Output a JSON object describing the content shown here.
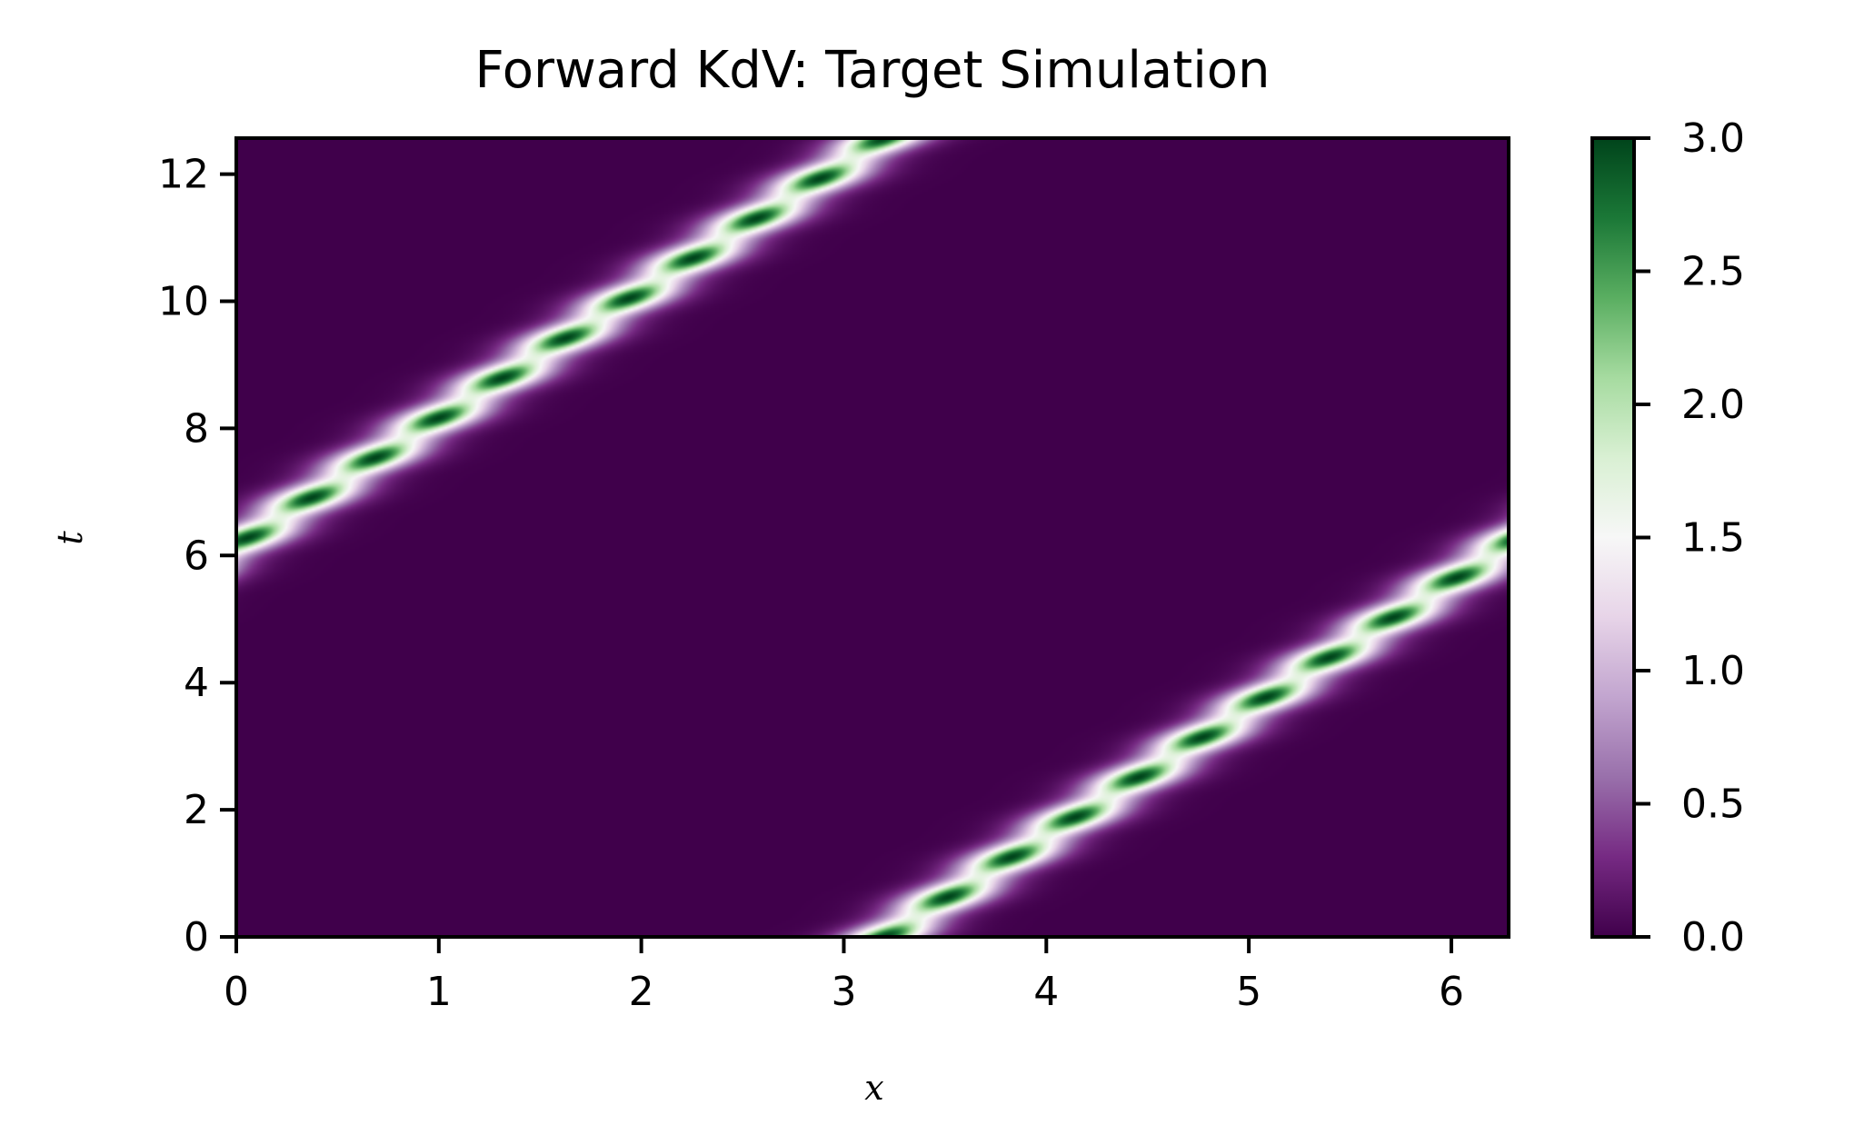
{
  "chart_data": {
    "type": "heatmap",
    "title": "Forward KdV: Target Simulation",
    "xlabel": "x",
    "ylabel": "t",
    "xlim": [
      0,
      6.283
    ],
    "ylim": [
      0,
      12.566
    ],
    "x_ticks": [
      0,
      1,
      2,
      3,
      4,
      5,
      6
    ],
    "y_ticks": [
      0,
      2,
      4,
      6,
      8,
      10,
      12
    ],
    "colorbar": {
      "vmin": 0.0,
      "vmax": 3.0,
      "ticks": [
        "0.0",
        "0.5",
        "1.0",
        "1.5",
        "2.0",
        "2.5",
        "3.0"
      ],
      "colormap": "PRGn",
      "colors": [
        "#40004b",
        "#762a83",
        "#9970ab",
        "#c2a5cf",
        "#e7d4e8",
        "#f7f7f7",
        "#d9f0d3",
        "#a6dba0",
        "#5aae61",
        "#1b7837",
        "#00441b"
      ]
    },
    "field": {
      "description_of_structure": "traveling soliton of amplitude 3 moving rightward with periodic wrap",
      "amplitude": 3.0,
      "background": 0.0,
      "x0": 3.2,
      "speed": 0.5,
      "period": 6.283,
      "width": 0.16,
      "ripple_period": 0.628
    }
  }
}
